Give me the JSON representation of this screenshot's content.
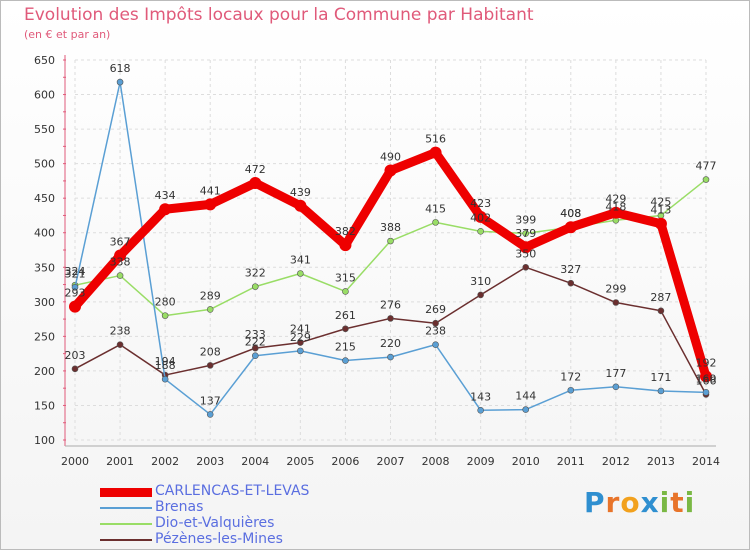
{
  "title": "Evolution des Impôts locaux pour la Commune par Habitant",
  "subtitle": "(en € et par an)",
  "logo_text": "Proxiti",
  "chart_data": {
    "type": "line",
    "title": "Evolution des Impôts locaux pour la Commune par Habitant",
    "subtitle": "(en € et par an)",
    "xlabel": "",
    "ylabel": "",
    "ylim": [
      100,
      650
    ],
    "yticks": [
      100,
      150,
      200,
      250,
      300,
      350,
      400,
      450,
      500,
      550,
      600,
      650
    ],
    "grid": true,
    "legend_position": "bottom-left",
    "x": [
      "2000",
      "2001",
      "2002",
      "2003",
      "2004",
      "2005",
      "2006",
      "2007",
      "2008",
      "2009",
      "2010",
      "2011",
      "2012",
      "2013",
      "2014"
    ],
    "series": [
      {
        "name": "CARLENCAS-ET-LEVAS",
        "color": "#ee0000",
        "width": 9,
        "label_color": "#333333",
        "values": [
          293,
          367,
          434,
          441,
          472,
          439,
          382,
          490,
          516,
          423,
          379,
          408,
          429,
          413,
          192
        ]
      },
      {
        "name": "Brenas",
        "color": "#5a9fd4",
        "width": 1.5,
        "label_color": "#333333",
        "values": [
          321,
          618,
          188,
          137,
          222,
          229,
          215,
          220,
          238,
          143,
          144,
          172,
          177,
          171,
          169
        ]
      },
      {
        "name": "Dio-et-Valquières",
        "color": "#99dd66",
        "width": 1.5,
        "label_color": "#333333",
        "values": [
          324,
          338,
          280,
          289,
          322,
          341,
          315,
          388,
          415,
          402,
          399,
          408,
          418,
          425,
          477
        ]
      },
      {
        "name": "Pézènes-les-Mines",
        "color": "#6b2f2f",
        "width": 1.5,
        "label_color": "#333333",
        "values": [
          203,
          238,
          194,
          208,
          233,
          241,
          261,
          276,
          269,
          310,
          350,
          327,
          299,
          287,
          166
        ]
      }
    ]
  }
}
